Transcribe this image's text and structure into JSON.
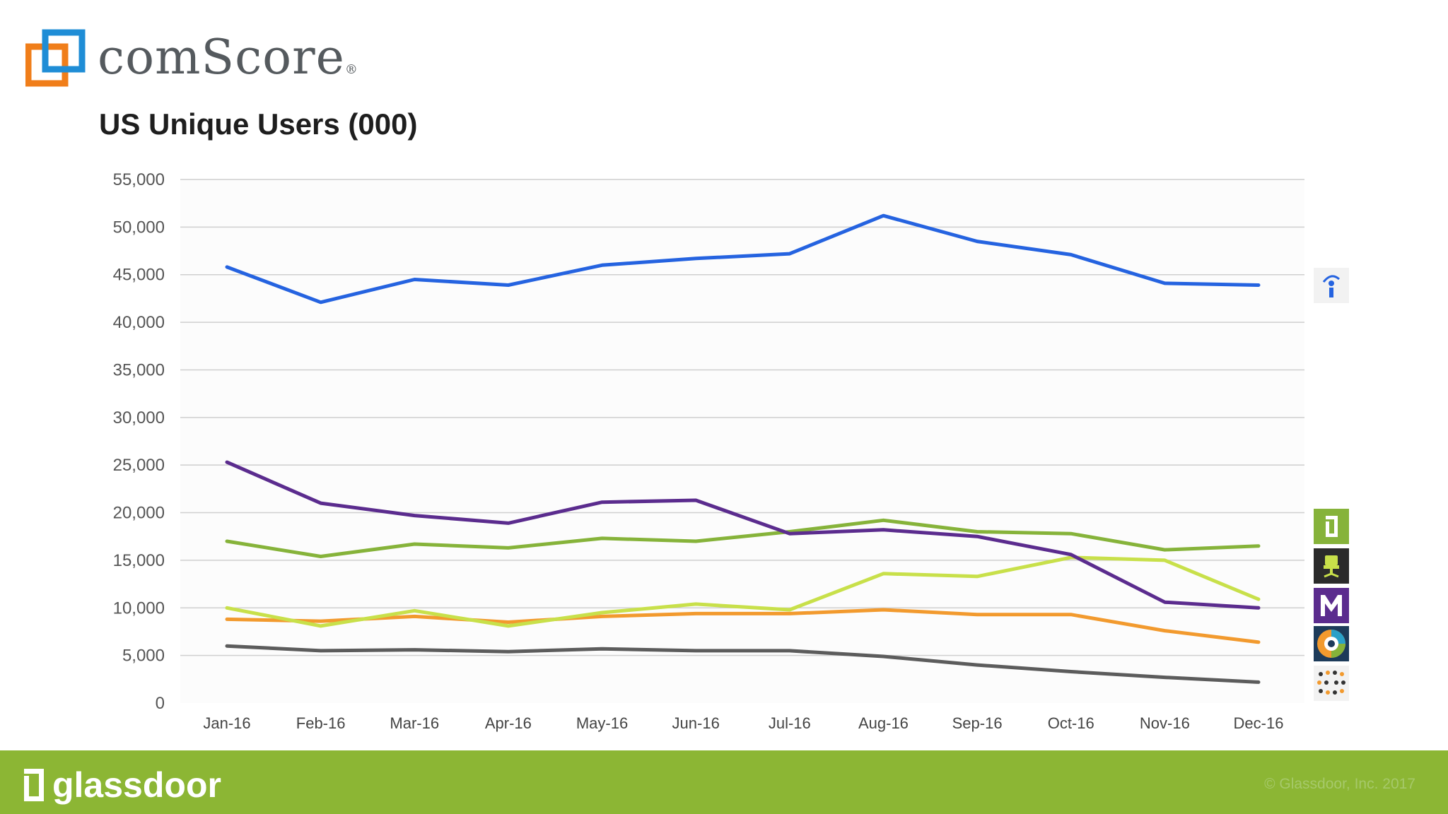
{
  "header": {
    "brand": "comScore",
    "brand_mark": "®"
  },
  "chart_data": {
    "type": "line",
    "title": "US Unique Users (000)",
    "xlabel": "",
    "ylabel": "",
    "ylim": [
      0,
      55000
    ],
    "yticks": [
      0,
      5000,
      10000,
      15000,
      20000,
      25000,
      30000,
      35000,
      40000,
      45000,
      50000,
      55000
    ],
    "ytick_labels": [
      "0",
      "5,000",
      "10,000",
      "15,000",
      "20,000",
      "25,000",
      "30,000",
      "35,000",
      "40,000",
      "45,000",
      "50,000",
      "55,000"
    ],
    "categories": [
      "Jan-16",
      "Feb-16",
      "Mar-16",
      "Apr-16",
      "May-16",
      "Jun-16",
      "Jul-16",
      "Aug-16",
      "Sep-16",
      "Oct-16",
      "Nov-16",
      "Dec-16"
    ],
    "grid": true,
    "legend": "icons at right edge",
    "series": [
      {
        "color": "#2563e0",
        "icon": "indeed-icon",
        "values": [
          45800,
          42100,
          44500,
          43900,
          46000,
          46700,
          47200,
          51200,
          48500,
          47100,
          44100,
          43900
        ]
      },
      {
        "color": "#5b2c8e",
        "icon": "monster-icon",
        "values": [
          25300,
          21000,
          19700,
          18900,
          21100,
          21300,
          17800,
          18200,
          17500,
          15600,
          10600,
          10000
        ]
      },
      {
        "color": "#86b33a",
        "icon": "glassdoor-icon",
        "values": [
          17000,
          15400,
          16700,
          16300,
          17300,
          17000,
          18000,
          19200,
          18000,
          17800,
          16100,
          16500
        ]
      },
      {
        "color": "#c8e04a",
        "icon": "careerbuilder-icon",
        "values": [
          10000,
          8100,
          9700,
          8100,
          9500,
          10400,
          9800,
          13600,
          13300,
          15300,
          15000,
          10900
        ]
      },
      {
        "color": "#f29a2e",
        "icon": "careerbuilder-circle-icon",
        "values": [
          8800,
          8600,
          9100,
          8500,
          9100,
          9400,
          9400,
          9800,
          9300,
          9300,
          7600,
          6400
        ]
      },
      {
        "color": "#5c5c5c",
        "icon": "ziprecruiter-icon",
        "values": [
          6000,
          5500,
          5600,
          5400,
          5700,
          5500,
          5500,
          4900,
          4000,
          3300,
          2700,
          2200
        ]
      }
    ]
  },
  "footer": {
    "brand": "glassdoor",
    "copyright": "© Glassdoor, Inc. 2017"
  },
  "colors": {
    "footer_bg": "#8cb634",
    "comscore_blue": "#1f8dd6",
    "comscore_orange": "#f07e1a"
  }
}
